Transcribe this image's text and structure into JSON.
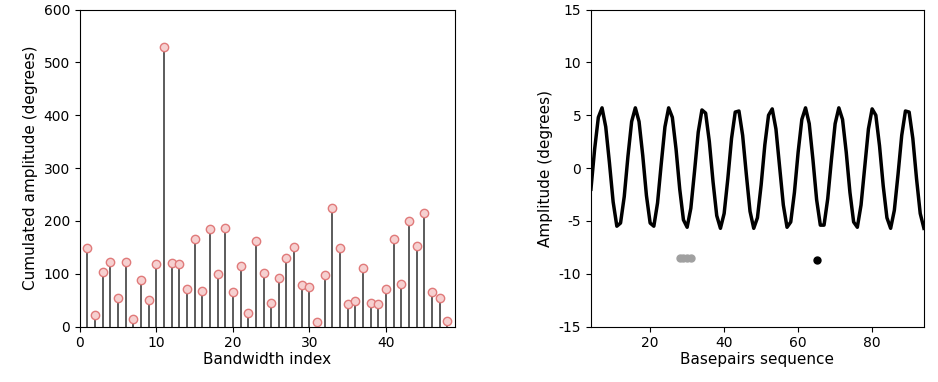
{
  "chart_data": [
    {
      "type": "stem",
      "x_label": "Bandwidth index",
      "y_label": "Cumulated amplitude (degrees)",
      "x": [
        1,
        2,
        3,
        4,
        5,
        6,
        7,
        8,
        9,
        10,
        11,
        12,
        13,
        14,
        15,
        16,
        17,
        18,
        19,
        20,
        21,
        22,
        23,
        24,
        25,
        26,
        27,
        28,
        29,
        30,
        31,
        32,
        33,
        34,
        35,
        36,
        37,
        38,
        39,
        40,
        41,
        42,
        43,
        44,
        45,
        46,
        47,
        48
      ],
      "values": [
        148,
        22,
        103,
        122,
        55,
        122,
        15,
        88,
        50,
        118,
        530,
        120,
        118,
        72,
        165,
        68,
        185,
        100,
        187,
        65,
        115,
        25,
        162,
        102,
        45,
        92,
        130,
        150,
        78,
        75,
        8,
        98,
        225,
        148,
        42,
        48,
        110,
        45,
        42,
        72,
        165,
        80,
        200,
        152,
        215,
        65,
        55,
        10
      ],
      "color": "#404040",
      "marker": "o",
      "xlim": [
        0,
        49
      ],
      "xticks": [
        0,
        10,
        20,
        30,
        40
      ],
      "ylim": [
        0,
        600
      ],
      "yticks": [
        0,
        100,
        200,
        300,
        400,
        500,
        600
      ]
    },
    {
      "type": "line",
      "x_label": "Basepairs sequence",
      "y_label": "Amplitude (degrees)",
      "xlim": [
        4,
        94
      ],
      "xticks": [
        20,
        40,
        60,
        80
      ],
      "ylim": [
        -15,
        15
      ],
      "yticks": [
        -15,
        -10,
        -5,
        0,
        5,
        10,
        15
      ],
      "series": [
        {
          "type": "line",
          "color": "#000000",
          "line_style": "solid",
          "x": [
            4,
            5,
            6,
            7,
            8,
            9,
            10,
            11,
            12,
            13,
            14,
            15,
            16,
            17,
            18,
            19,
            20,
            21,
            22,
            23,
            24,
            25,
            26,
            27,
            28,
            29,
            30,
            31,
            32,
            33,
            34,
            35,
            36,
            37,
            38,
            39,
            40,
            41,
            42,
            43,
            44,
            45,
            46,
            47,
            48,
            49,
            50,
            51,
            52,
            53,
            54,
            55,
            56,
            57,
            58,
            59,
            60,
            61,
            62,
            63,
            64,
            65,
            66,
            67,
            68,
            69,
            70,
            71,
            72,
            73,
            74,
            75,
            76,
            77,
            78,
            79,
            80,
            81,
            82,
            83,
            84,
            85,
            86,
            87,
            88,
            89,
            90,
            91,
            92,
            93,
            94
          ],
          "values": [
            -2.0,
            1.8,
            4.8,
            5.7,
            3.9,
            0.5,
            -3.2,
            -5.5,
            -5.2,
            -2.7,
            1.1,
            4.4,
            5.7,
            4.4,
            1.2,
            -2.6,
            -5.2,
            -5.5,
            -3.3,
            0.4,
            3.9,
            5.7,
            4.8,
            1.8,
            -2.0,
            -4.9,
            -5.6,
            -3.8,
            -0.3,
            3.4,
            5.5,
            5.2,
            2.5,
            -1.3,
            -4.5,
            -5.7,
            -4.3,
            -1.0,
            2.8,
            5.3,
            5.4,
            3.1,
            -0.6,
            -4.1,
            -5.7,
            -4.7,
            -1.6,
            2.2,
            5.0,
            5.6,
            3.7,
            0.1,
            -3.5,
            -5.6,
            -5.1,
            -2.3,
            1.5,
            4.6,
            5.7,
            4.2,
            0.8,
            -3.0,
            -5.4,
            -5.4,
            -2.9,
            0.8,
            4.2,
            5.7,
            4.6,
            1.5,
            -2.3,
            -5.1,
            -5.6,
            -3.5,
            0.1,
            3.7,
            5.6,
            5.0,
            2.1,
            -1.7,
            -4.7,
            -5.7,
            -4.0,
            -0.6,
            3.1,
            5.4,
            5.3,
            2.8,
            -1.0,
            -4.3,
            -5.7
          ]
        },
        {
          "type": "scatter",
          "color": "#a0a0a0",
          "marker": "o",
          "x": [
            28,
            29,
            30,
            31
          ],
          "values": [
            -8.5,
            -8.5,
            -8.5,
            -8.5
          ]
        },
        {
          "type": "scatter",
          "color": "#000000",
          "marker": "o",
          "x": [
            65
          ],
          "values": [
            -8.7
          ]
        }
      ]
    }
  ]
}
